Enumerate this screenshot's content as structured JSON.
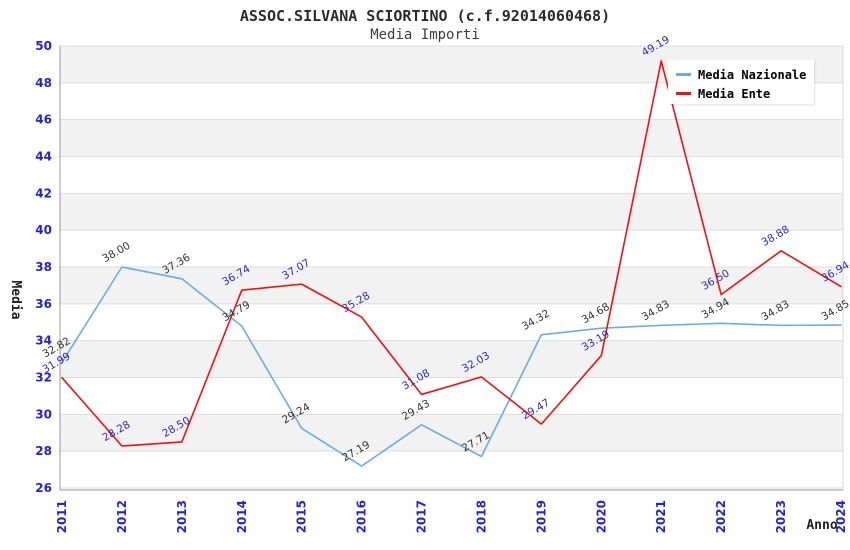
{
  "header": {
    "title": "ASSOC.SILVANA SCIORTINO (c.f.92014060468)",
    "subtitle": "Media Importi"
  },
  "axes": {
    "y_title": "Media",
    "x_title": "Anno",
    "y_min": 26,
    "y_max": 50,
    "y_step": 2,
    "tick_label_color": "#2424CC"
  },
  "legend": {
    "position": "top-right",
    "items": [
      {
        "label": "Media Nazionale",
        "color": "#6CACE4"
      },
      {
        "label": "Media Ente",
        "color": "#EE1111"
      }
    ]
  },
  "chart_data": {
    "type": "line",
    "title": "ASSOC.SILVANA SCIORTINO (c.f.92014060468)",
    "subtitle": "Media Importi",
    "xlabel": "Anno",
    "ylabel": "Media",
    "ylim": [
      26,
      50
    ],
    "ytick_step": 2,
    "grid": true,
    "alternating_bands": true,
    "legend_position": "top-right",
    "x": [
      2011,
      2012,
      2013,
      2014,
      2015,
      2016,
      2017,
      2018,
      2019,
      2020,
      2021,
      2022,
      2023,
      2024
    ],
    "series": [
      {
        "name": "Media Nazionale",
        "color": "#6CACE4",
        "label_color": "#333333",
        "values": [
          32.82,
          38.0,
          37.36,
          34.79,
          29.24,
          27.19,
          29.43,
          27.71,
          34.32,
          34.68,
          34.83,
          34.94,
          34.83,
          34.85
        ]
      },
      {
        "name": "Media Ente",
        "color": "#EE1111",
        "label_color": "#2A2ABF",
        "values": [
          31.99,
          28.28,
          28.5,
          36.74,
          37.07,
          35.28,
          31.08,
          32.03,
          29.47,
          33.19,
          49.19,
          36.5,
          38.88,
          36.94
        ]
      }
    ]
  },
  "colors": {
    "band": "#F2F2F2",
    "gridline": "#DDDDDD",
    "axis": "#999999",
    "plot_border": "#D8D8D8",
    "title": "#2B2B2B"
  }
}
